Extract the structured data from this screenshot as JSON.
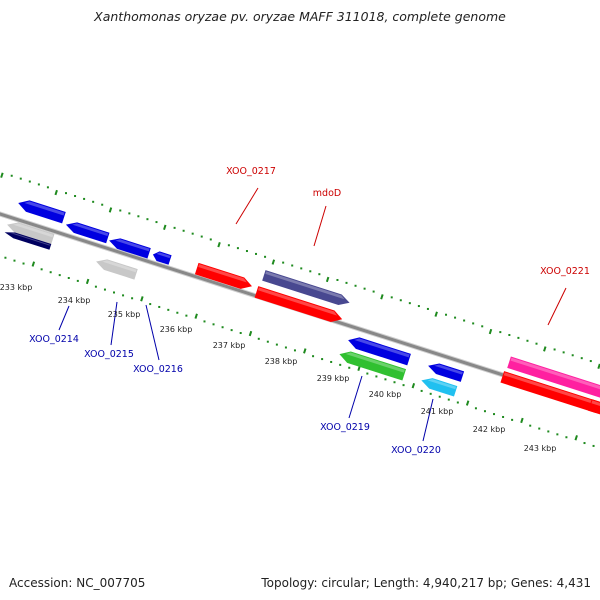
{
  "title": "Xanthomonas oryzae pv. oryzae MAFF 311018, complete genome",
  "footer": {
    "accession": "Accession: NC_007705",
    "summary": "Topology: circular; Length: 4,940,217 bp; Genes: 4,431"
  },
  "colors": {
    "backbone": "#888888",
    "tick": "#1e8a1e",
    "label_forward": "#cc0000",
    "label_reverse": "#0000aa"
  },
  "scale_labels": [
    "233 kbp",
    "234 kbp",
    "235 kbp",
    "236 kbp",
    "237 kbp",
    "238 kbp",
    "239 kbp",
    "240 kbp",
    "241 kbp",
    "242 kbp",
    "243 kbp"
  ],
  "genes": [
    {
      "id": "g1",
      "name": "XOO_0214",
      "strand": "reverse",
      "color": "#0000e0"
    },
    {
      "id": "g2",
      "name": "",
      "strand": "reverse",
      "color": "#0000e0"
    },
    {
      "id": "g3",
      "name": "",
      "strand": "reverse",
      "color": "#0000e0"
    },
    {
      "id": "g4",
      "name": "",
      "strand": "reverse",
      "color": "#0000e0"
    },
    {
      "id": "g5",
      "name": "XOO_0214",
      "strand": "reverse",
      "color": "#c8c8c8"
    },
    {
      "id": "g6",
      "name": "",
      "strand": "reverse",
      "color": "#000060"
    },
    {
      "id": "g7",
      "name": "XOO_0215",
      "strand": "reverse",
      "color": "#c8c8c8"
    },
    {
      "id": "g8",
      "name": "XOO_0217",
      "strand": "forward",
      "color": "#ff0000"
    },
    {
      "id": "g9",
      "name": "mdoD",
      "strand": "forward",
      "color": "#484890"
    },
    {
      "id": "g10",
      "name": "mdoD",
      "strand": "forward",
      "color": "#ff0000"
    },
    {
      "id": "g11",
      "name": "XOO_0219",
      "strand": "reverse",
      "color": "#0000e0"
    },
    {
      "id": "g12",
      "name": "XOO_0219",
      "strand": "reverse",
      "color": "#30c030"
    },
    {
      "id": "g13",
      "name": "XOO_0220",
      "strand": "reverse",
      "color": "#0000e0"
    },
    {
      "id": "g14",
      "name": "XOO_0220",
      "strand": "reverse",
      "color": "#20c0f0"
    },
    {
      "id": "g15",
      "name": "XOO_0221",
      "strand": "forward",
      "color": "#ff20a0"
    },
    {
      "id": "g16",
      "name": "XOO_0221",
      "strand": "forward",
      "color": "#ff0000"
    },
    {
      "id": "g17",
      "name": "",
      "strand": "forward",
      "color": "#ff0000"
    }
  ],
  "labels": [
    {
      "text": "XOO_0214",
      "strand": "reverse"
    },
    {
      "text": "XOO_0215",
      "strand": "reverse"
    },
    {
      "text": "XOO_0216",
      "strand": "reverse"
    },
    {
      "text": "XOO_0217",
      "strand": "forward"
    },
    {
      "text": "mdoD",
      "strand": "forward"
    },
    {
      "text": "XOO_0219",
      "strand": "reverse"
    },
    {
      "text": "XOO_0220",
      "strand": "reverse"
    },
    {
      "text": "XOO_0221",
      "strand": "forward"
    }
  ]
}
